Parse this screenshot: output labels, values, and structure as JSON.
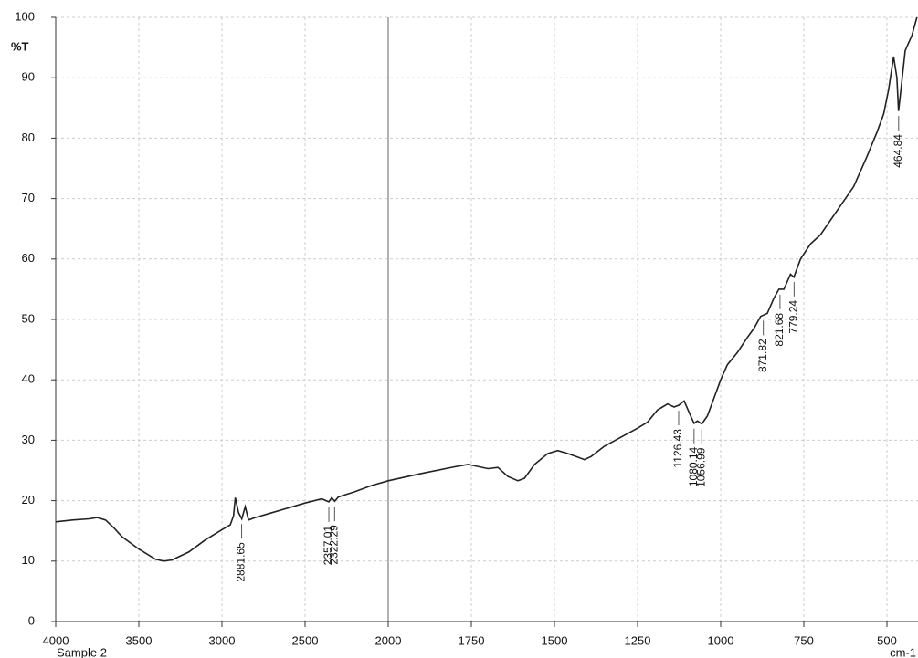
{
  "chart_data": {
    "type": "line",
    "y_label": "%T",
    "x_label": "cm-1",
    "sample": "Sample 2",
    "x": [
      4000,
      3900,
      3800,
      3750,
      3700,
      3650,
      3600,
      3500,
      3400,
      3350,
      3300,
      3200,
      3100,
      3000,
      2950,
      2930,
      2920,
      2900,
      2881,
      2860,
      2840,
      2800,
      2700,
      2600,
      2500,
      2400,
      2357,
      2340,
      2322,
      2300,
      2200,
      2100,
      2000,
      1900,
      1800,
      1760,
      1700,
      1670,
      1640,
      1610,
      1590,
      1560,
      1520,
      1490,
      1460,
      1430,
      1410,
      1390,
      1350,
      1300,
      1250,
      1220,
      1190,
      1160,
      1140,
      1126,
      1110,
      1090,
      1080,
      1070,
      1057,
      1040,
      1020,
      1000,
      980,
      950,
      920,
      900,
      880,
      860,
      840,
      825,
      810,
      790,
      780,
      760,
      730,
      700,
      650,
      600,
      560,
      530,
      510,
      495,
      480,
      470,
      465,
      458,
      445,
      425,
      410
    ],
    "series": [
      {
        "name": "Sample 2",
        "color": "#222222",
        "values": [
          16.5,
          16.8,
          17.0,
          17.2,
          16.8,
          15.5,
          14.0,
          12.0,
          10.3,
          10.0,
          10.2,
          11.5,
          13.5,
          15.2,
          16.0,
          17.5,
          20.5,
          18.0,
          17.0,
          19.0,
          16.8,
          17.2,
          18.0,
          18.8,
          19.6,
          20.3,
          19.8,
          20.5,
          19.9,
          20.6,
          21.5,
          22.5,
          23.3,
          24.5,
          25.6,
          26.0,
          25.3,
          25.5,
          24.0,
          23.3,
          23.7,
          26.0,
          27.8,
          28.3,
          27.8,
          27.2,
          26.8,
          27.3,
          29.0,
          30.5,
          32.0,
          33.0,
          35.0,
          36.0,
          35.5,
          35.8,
          36.5,
          34.0,
          32.8,
          33.2,
          32.7,
          34.0,
          37.0,
          40.0,
          42.5,
          44.5,
          47.0,
          48.5,
          50.5,
          51.0,
          53.5,
          55.0,
          55.0,
          57.5,
          57.0,
          60.0,
          62.5,
          64.0,
          68.0,
          72.0,
          77.0,
          81.0,
          84.0,
          88.0,
          93.5,
          90.0,
          84.5,
          88.0,
          94.5,
          97.0,
          100.0
        ]
      }
    ],
    "peaks": [
      2881.65,
      2357.01,
      2322.29,
      1126.43,
      1080.14,
      1056.99,
      871.82,
      821.68,
      779.24,
      464.84
    ],
    "xlim": [
      4000,
      400
    ],
    "ylim": [
      0,
      100
    ],
    "xticks": [
      4000,
      3500,
      3000,
      2500,
      2000,
      1750,
      1500,
      1250,
      1000,
      750,
      500
    ],
    "yticks": [
      0,
      10,
      20,
      30,
      40,
      50,
      60,
      70,
      80,
      90,
      100
    ],
    "grid": true
  }
}
